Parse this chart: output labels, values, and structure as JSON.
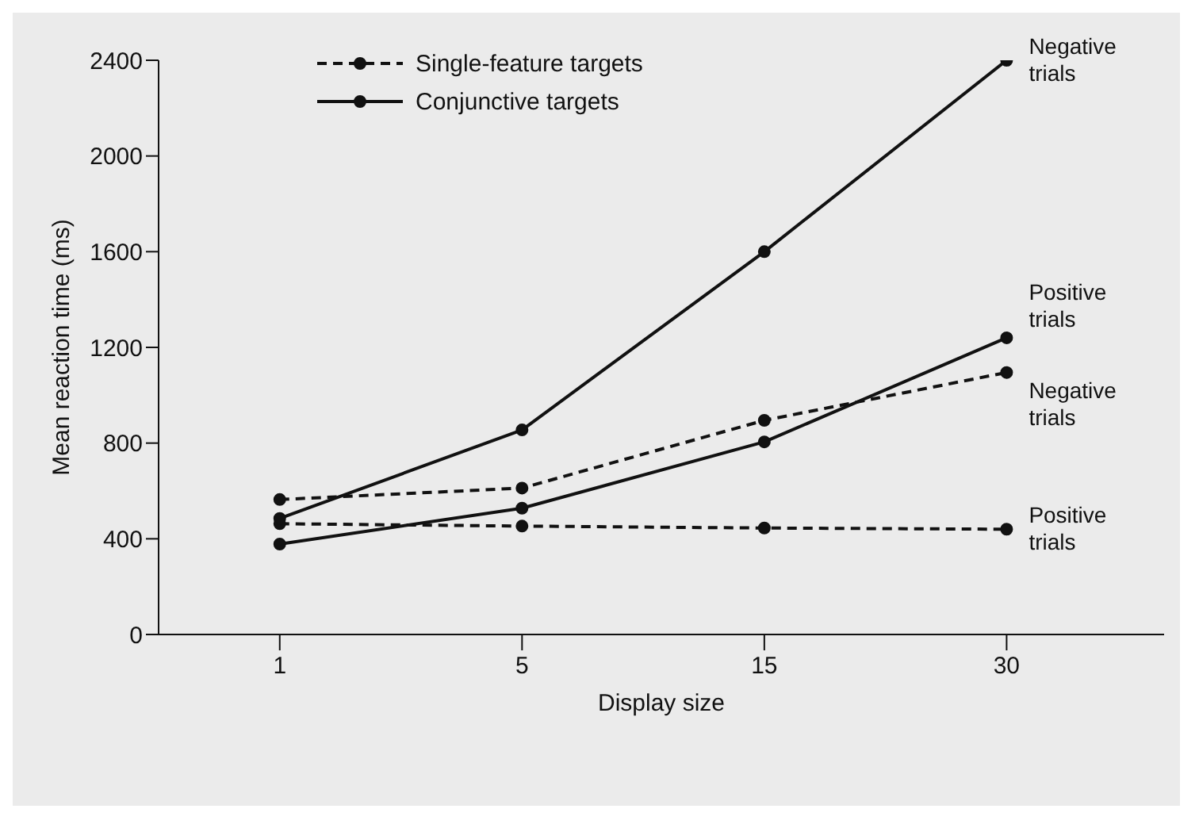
{
  "chart_data": {
    "type": "line",
    "xlabel": "Display size",
    "ylabel": "Mean reaction time (ms)",
    "categories": [
      "1",
      "5",
      "15",
      "30"
    ],
    "series": [
      {
        "name": "Single-feature targets",
        "color": "#111111",
        "line_style": "dashed",
        "values": [
          564,
          612,
          895,
          1095
        ]
      },
      {
        "color": "#111111",
        "line_style": "dashed",
        "values": [
          463,
          453,
          445,
          440
        ]
      },
      {
        "name": "Conjunctive targets",
        "color": "#111111",
        "line_style": "solid",
        "values": [
          485,
          855,
          1600,
          2400
        ]
      },
      {
        "color": "#111111",
        "line_style": "solid",
        "values": [
          378,
          528,
          805,
          1240
        ]
      }
    ],
    "ylim": [
      0,
      2400
    ],
    "yticks": [
      0,
      400,
      800,
      1200,
      1600,
      2000,
      2400
    ],
    "marker": "circle",
    "grid": false,
    "legend": "top left",
    "annotations": [
      {
        "text": "Negative trials",
        "x": "30",
        "y": 2400
      },
      {
        "text": "Positive trials",
        "x": "30",
        "y": 1240
      },
      {
        "text": "Negative trials",
        "x": "30",
        "y": 1095
      },
      {
        "text": "Positive trials",
        "x": "30",
        "y": 440
      }
    ]
  }
}
